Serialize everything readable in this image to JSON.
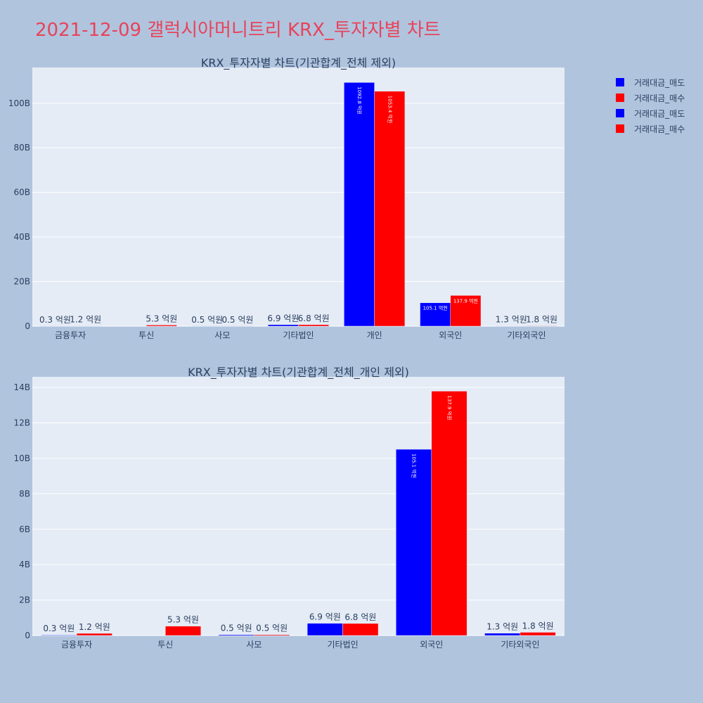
{
  "title": "2021-12-09 갤럭시아머니트리 KRX_투자자별 차트",
  "colors": {
    "sell": "#0000ff",
    "buy": "#ff0000",
    "plot_bg": "#e5ecf6",
    "paper_bg": "#b0c4de",
    "title": "#e8435a"
  },
  "legend": [
    {
      "label": "거래대금_매도",
      "color": "#0000ff"
    },
    {
      "label": "거래대금_매수",
      "color": "#ff0000"
    },
    {
      "label": "거래대금_매도",
      "color": "#0000ff"
    },
    {
      "label": "거래대금_매수",
      "color": "#ff0000"
    }
  ],
  "chart_data": [
    {
      "type": "bar",
      "title": "KRX_투자자별 차트(기관합계_전체 제외)",
      "categories": [
        "금융투자",
        "투신",
        "사모",
        "기타법인",
        "개인",
        "외국인",
        "기타외국인"
      ],
      "series": [
        {
          "name": "거래대금_매도",
          "color": "#0000ff",
          "values": [
            30000000,
            0,
            50000000,
            690000000,
            109280000000,
            10510000000,
            130000000
          ],
          "labels": [
            "0.3 억원",
            "",
            "0.5 억원",
            "6.9 억원",
            "1092.8 억원",
            "105.1 억원",
            "1.3 억원"
          ]
        },
        {
          "name": "거래대금_매수",
          "color": "#ff0000",
          "values": [
            120000000,
            530000000,
            50000000,
            680000000,
            105340000000,
            13790000000,
            180000000
          ],
          "labels": [
            "1.2 억원",
            "5.3 억원",
            "0.5 억원",
            "6.8 억원",
            "1053.4 억원",
            "137.9 억원",
            "1.8 억원"
          ]
        }
      ],
      "ylim": [
        0,
        116000000000
      ],
      "yticks": [
        0,
        20000000000,
        40000000000,
        60000000000,
        80000000000,
        100000000000
      ],
      "ytick_labels": [
        "0",
        "20B",
        "40B",
        "60B",
        "80B",
        "100B"
      ],
      "grid": true
    },
    {
      "type": "bar",
      "title": "KRX_투자자별 차트(기관합계_전체_개인 제외)",
      "categories": [
        "금융투자",
        "투신",
        "사모",
        "기타법인",
        "외국인",
        "기타외국인"
      ],
      "series": [
        {
          "name": "거래대금_매도",
          "color": "#0000ff",
          "values": [
            30000000,
            0,
            50000000,
            690000000,
            10510000000,
            130000000
          ],
          "labels": [
            "0.3 억원",
            "",
            "0.5 억원",
            "6.9 억원",
            "105.1 억원",
            "1.3 억원"
          ]
        },
        {
          "name": "거래대금_매수",
          "color": "#ff0000",
          "values": [
            120000000,
            530000000,
            50000000,
            680000000,
            13790000000,
            180000000
          ],
          "labels": [
            "1.2 억원",
            "5.3 억원",
            "0.5 억원",
            "6.8 억원",
            "137.9 억원",
            "1.8 억원"
          ]
        }
      ],
      "ylim": [
        0,
        14600000000
      ],
      "yticks": [
        0,
        2000000000,
        4000000000,
        6000000000,
        8000000000,
        10000000000,
        12000000000,
        14000000000
      ],
      "ytick_labels": [
        "0",
        "2B",
        "4B",
        "6B",
        "8B",
        "10B",
        "12B",
        "14B"
      ],
      "grid": true
    }
  ]
}
